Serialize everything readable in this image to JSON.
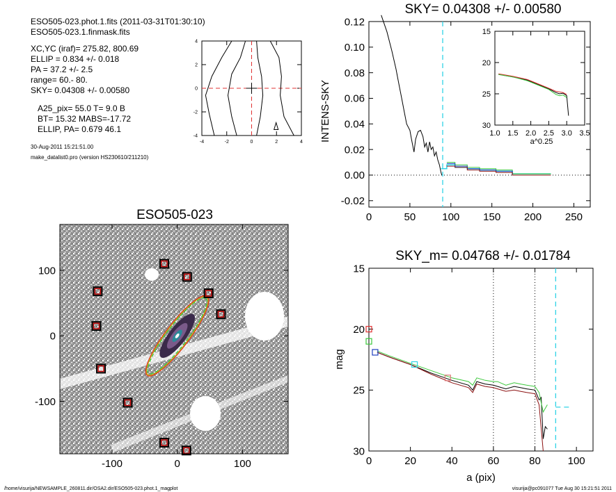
{
  "info": {
    "lines_a": [
      "ESO505-023.phot.1.fits  (2011-03-31T01:30:10)",
      "ESO505-023.1.finmask.fits"
    ],
    "lines_b": [
      "XC,YC (iraf)=   275.82, 800.69",
      "ELLIP = 0.834 +/- 0.018",
      "PA    = 37.2 +/-   2.5",
      "range=   60.-   80.",
      "SKY= 0.04308 +/- 0.00580"
    ],
    "lines_c": [
      "A25_pix= 55.0   T= 9.0  B",
      "BT=  15.32   MABS=-17.72",
      "ELLIP, PA= 0.679   46.1"
    ],
    "lines_d": [
      "30-Aug-2011 15:21:51.00",
      "make_datalist0.pro (version HS230610/211210)"
    ]
  },
  "footer": {
    "path": "/home/visurija/NEWSAMPLE_260811.dir/OSA2.dir/ESO505-023.phot.1_magplot",
    "user": "visurija@pc091077  Tue Aug 30 15:21:51 2011"
  },
  "colors": {
    "cyan": "#2fd3e6",
    "red": "#e03030",
    "green": "#3cc83c",
    "blue": "#2040c0",
    "maroon": "#8b1010",
    "pink": "#e07878"
  },
  "chart_data": [
    {
      "type": "line",
      "title": "SKY= 0.04308 +/- 0.00580",
      "xlabel": "",
      "ylabel": "INTENS-SKY",
      "xlim": [
        0,
        270
      ],
      "ylim": [
        -0.025,
        0.12
      ],
      "xticks": [
        "0",
        "50",
        "100",
        "150",
        "200",
        "250"
      ],
      "yticks": [
        "-0.02",
        "0.00",
        "0.02",
        "0.04",
        "0.06",
        "0.08",
        "0.10",
        "0.12"
      ],
      "series": [
        {
          "values": [
            [
              15,
              0.125
            ],
            [
              22,
              0.112
            ],
            [
              28,
              0.097
            ],
            [
              33,
              0.083
            ],
            [
              36,
              0.073
            ],
            [
              40,
              0.06
            ],
            [
              43,
              0.05
            ],
            [
              46,
              0.04
            ],
            [
              50,
              0.035
            ],
            [
              52,
              0.028
            ],
            [
              55,
              0.018
            ],
            [
              57,
              0.028
            ],
            [
              60,
              0.034
            ],
            [
              63,
              0.035
            ],
            [
              66,
              0.03
            ],
            [
              68,
              0.022
            ],
            [
              70,
              0.025
            ],
            [
              72,
              0.018
            ],
            [
              74,
              0.026
            ],
            [
              76,
              0.02
            ],
            [
              78,
              0.022
            ],
            [
              80,
              0.015
            ],
            [
              82,
              0.018
            ],
            [
              84,
              0.012
            ],
            [
              86,
              0.008
            ],
            [
              88,
              0.002
            ],
            [
              89,
              0
            ]
          ]
        },
        {
          "values": [
            [
              88,
              0.005
            ],
            [
              95,
              0.005
            ],
            [
              95,
              0.008
            ],
            [
              105,
              0.008
            ],
            [
              105,
              0.006
            ],
            [
              120,
              0.006
            ],
            [
              120,
              0.005
            ],
            [
              135,
              0.005
            ],
            [
              135,
              0.004
            ],
            [
              155,
              0.004
            ],
            [
              155,
              0.003
            ],
            [
              175,
              0.003
            ],
            [
              175,
              0.001
            ],
            [
              222,
              0.001
            ]
          ]
        },
        {
          "values": [
            [
              95,
              0.01
            ],
            [
              105,
              0.01
            ],
            [
              105,
              0.008
            ],
            [
              120,
              0.008
            ],
            [
              120,
              0.006
            ],
            [
              135,
              0.006
            ],
            [
              135,
              0.005
            ],
            [
              155,
              0.005
            ],
            [
              155,
              0.004
            ],
            [
              175,
              0.004
            ],
            [
              175,
              0.001
            ],
            [
              222,
              0.001
            ]
          ]
        },
        {
          "values": [
            [
              95,
              0.009
            ],
            [
              105,
              0.009
            ],
            [
              105,
              0.007
            ],
            [
              120,
              0.007
            ],
            [
              120,
              0.005
            ],
            [
              135,
              0.005
            ],
            [
              135,
              0.004
            ],
            [
              155,
              0.004
            ],
            [
              155,
              0.003
            ],
            [
              175,
              0.003
            ],
            [
              175,
              0
            ],
            [
              222,
              0
            ]
          ]
        },
        {
          "values": [
            [
              95,
              0.007
            ],
            [
              105,
              0.007
            ],
            [
              105,
              0.006
            ],
            [
              120,
              0.006
            ],
            [
              120,
              0.004
            ],
            [
              135,
              0.004
            ],
            [
              135,
              0.003
            ],
            [
              155,
              0.003
            ],
            [
              155,
              0.002
            ],
            [
              175,
              0.002
            ],
            [
              175,
              0
            ],
            [
              222,
              0
            ]
          ]
        }
      ],
      "vline_x": 90,
      "zero_line": 0
    },
    {
      "type": "line",
      "title": "",
      "xlabel": "a^0.25",
      "ylabel": "",
      "xlim": [
        1.0,
        3.5
      ],
      "ylim": [
        30,
        15
      ],
      "xticks": [
        "1.0",
        "1.5",
        "2.0",
        "2.5",
        "3.0",
        "3.5"
      ],
      "yticks": [
        "15",
        "20",
        "25",
        "30"
      ],
      "series": [
        {
          "values": [
            [
              1.1,
              21.9
            ],
            [
              1.5,
              22.3
            ],
            [
              1.9,
              22.8
            ],
            [
              2.2,
              23.5
            ],
            [
              2.5,
              24.2
            ],
            [
              2.7,
              24.8
            ],
            [
              2.8,
              25.0
            ],
            [
              2.9,
              24.9
            ],
            [
              3.0,
              25.3
            ],
            [
              3.05,
              28.5
            ]
          ]
        },
        {
          "values": [
            [
              1.1,
              21.8
            ],
            [
              1.5,
              22.2
            ],
            [
              1.9,
              22.7
            ],
            [
              2.2,
              23.4
            ],
            [
              2.5,
              24.1
            ],
            [
              2.7,
              24.6
            ],
            [
              2.8,
              24.7
            ],
            [
              2.9,
              24.8
            ],
            [
              3.0,
              25.1
            ]
          ]
        },
        {
          "values": [
            [
              1.1,
              21.9
            ],
            [
              1.5,
              22.3
            ],
            [
              1.9,
              22.9
            ],
            [
              2.2,
              23.6
            ],
            [
              2.5,
              24.3
            ],
            [
              2.7,
              25.1
            ],
            [
              2.8,
              25.3
            ],
            [
              2.9,
              25.2
            ],
            [
              3.0,
              25.6
            ]
          ]
        }
      ]
    },
    {
      "type": "line",
      "title": "",
      "xlabel": "",
      "ylabel": "",
      "xlim": [
        -4,
        4
      ],
      "ylim": [
        -4,
        4
      ],
      "xticks": [
        "-4",
        "-2",
        "0",
        "2",
        "4"
      ],
      "yticks": [
        "-4",
        "-2",
        "0",
        "2",
        "4"
      ],
      "series": [
        {
          "values": [
            [
              -1.6,
              4
            ],
            [
              -2.4,
              2.6
            ],
            [
              -3.2,
              1.0
            ],
            [
              -3.7,
              -0.6
            ],
            [
              -3.4,
              -2.2
            ],
            [
              -3.0,
              -4
            ]
          ]
        },
        {
          "values": [
            [
              1.5,
              4
            ],
            [
              2.2,
              2.6
            ],
            [
              2.4,
              1.0
            ],
            [
              2.3,
              -0.6
            ],
            [
              2.6,
              -2.4
            ],
            [
              3.4,
              -4
            ]
          ]
        },
        {
          "values": [
            [
              -0.5,
              4
            ],
            [
              -0.9,
              2.6
            ],
            [
              -1.6,
              1.2
            ],
            [
              -1.9,
              -0.6
            ],
            [
              -1.6,
              -2.4
            ],
            [
              -1.2,
              -4
            ]
          ]
        },
        {
          "values": [
            [
              0.4,
              4
            ],
            [
              0.5,
              2.6
            ],
            [
              0.8,
              1.0
            ],
            [
              0.9,
              -0.6
            ],
            [
              0.7,
              -2.4
            ],
            [
              0.4,
              -4
            ]
          ]
        }
      ],
      "crosshair": [
        0,
        0
      ]
    },
    {
      "type": "scatter",
      "title": "ESO505-023",
      "xlabel": "",
      "ylabel": "",
      "xlim": [
        -180,
        170
      ],
      "ylim": [
        -180,
        170
      ],
      "xticks": [
        "-100",
        "0",
        "100"
      ],
      "yticks": [
        "-100",
        "0",
        "100"
      ],
      "markers": [
        [
          -20,
          110
        ],
        [
          15,
          90
        ],
        [
          -122,
          68
        ],
        [
          48,
          65
        ],
        [
          67,
          33
        ],
        [
          -124,
          15
        ],
        [
          -117,
          -50
        ],
        [
          -76,
          -102
        ],
        [
          -20,
          -163
        ],
        [
          14,
          -175
        ]
      ],
      "galaxy": {
        "center": [
          0,
          0
        ],
        "major_axis": 150,
        "minor_axis": 35,
        "angle": 37.2
      }
    },
    {
      "type": "line",
      "title": "SKY_m=  0.04768 +/- 0.01784",
      "xlabel": "a (pix)",
      "ylabel": "mag",
      "xlim": [
        0,
        108
      ],
      "ylim": [
        30,
        15
      ],
      "xticks": [
        "0",
        "20",
        "40",
        "60",
        "80",
        "100"
      ],
      "yticks": [
        "15",
        "20",
        "25",
        "30"
      ],
      "vlines_dotted": [
        60,
        80
      ],
      "vline_dashed": 90,
      "sky_level": 26.4,
      "series": [
        {
          "values": [
            [
              4,
              21.9
            ],
            [
              10,
              22.3
            ],
            [
              20,
              22.9
            ],
            [
              30,
              23.6
            ],
            [
              40,
              24.2
            ],
            [
              48,
              24.6
            ],
            [
              50,
              25.0
            ],
            [
              52,
              24.3
            ],
            [
              56,
              24.5
            ],
            [
              60,
              24.6
            ],
            [
              62,
              24.7
            ],
            [
              66,
              24.9
            ],
            [
              70,
              24.7
            ],
            [
              73,
              24.8
            ],
            [
              76,
              24.9
            ],
            [
              80,
              25.0
            ],
            [
              82,
              25.8
            ],
            [
              83,
              25.6
            ],
            [
              84,
              29.0
            ],
            [
              85,
              28.0
            ],
            [
              86,
              28.2
            ]
          ]
        },
        {
          "values": [
            [
              4,
              21.8
            ],
            [
              10,
              22.2
            ],
            [
              20,
              22.8
            ],
            [
              30,
              23.4
            ],
            [
              40,
              24.0
            ],
            [
              48,
              24.3
            ],
            [
              50,
              24.6
            ],
            [
              52,
              24.0
            ],
            [
              56,
              24.2
            ],
            [
              60,
              24.3
            ],
            [
              62,
              24.3
            ],
            [
              66,
              24.6
            ],
            [
              70,
              24.4
            ],
            [
              73,
              24.5
            ],
            [
              76,
              24.6
            ],
            [
              80,
              24.7
            ],
            [
              82,
              25.2
            ],
            [
              84,
              26.8
            ],
            [
              86,
              26.2
            ]
          ]
        },
        {
          "values": [
            [
              4,
              21.9
            ],
            [
              10,
              22.3
            ],
            [
              20,
              22.9
            ],
            [
              30,
              23.7
            ],
            [
              40,
              24.4
            ],
            [
              48,
              24.8
            ],
            [
              50,
              25.2
            ],
            [
              52,
              24.5
            ],
            [
              56,
              24.7
            ],
            [
              60,
              24.8
            ],
            [
              62,
              24.9
            ],
            [
              66,
              25.1
            ],
            [
              70,
              25.0
            ],
            [
              73,
              25.1
            ],
            [
              76,
              25.2
            ],
            [
              80,
              25.3
            ],
            [
              82,
              26.2
            ],
            [
              84,
              30.0
            ]
          ]
        }
      ],
      "box_markers": [
        {
          "x": 0,
          "y": 20.0,
          "c": "red"
        },
        {
          "x": 0,
          "y": 21.0,
          "c": "green"
        },
        {
          "x": 3,
          "y": 21.9,
          "c": "blue"
        },
        {
          "x": 22,
          "y": 22.9,
          "c": "cyan"
        },
        {
          "x": 38,
          "y": 24.0,
          "c": "pink"
        }
      ]
    }
  ]
}
